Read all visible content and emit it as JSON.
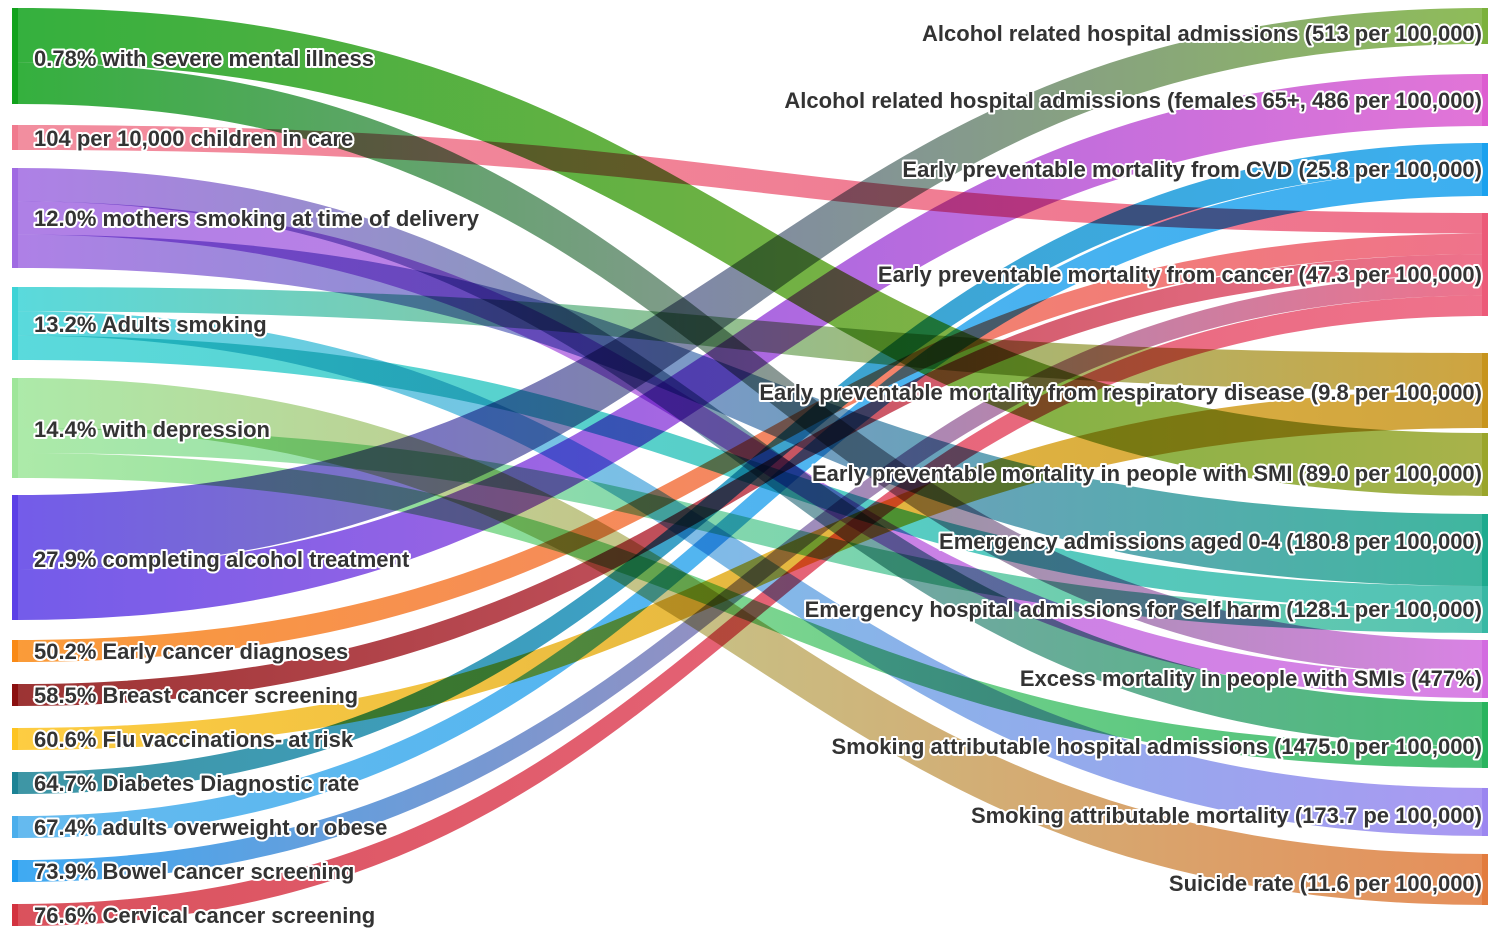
{
  "chart_data": {
    "type": "sankey",
    "sources": [
      {
        "id": "s0",
        "label": "0.78% with severe mental illness",
        "color": "#11a21c"
      },
      {
        "id": "s1",
        "label": "104 per 10,000 children in care",
        "color": "#f07a8e"
      },
      {
        "id": "s2",
        "label": "12.0% mothers smoking at time of delivery",
        "color": "#a06ae2"
      },
      {
        "id": "s3",
        "label": "13.2% Adults smoking",
        "color": "#3dd3d6"
      },
      {
        "id": "s4",
        "label": "14.4% with depression",
        "color": "#9ee69a"
      },
      {
        "id": "s5",
        "label": "27.9% completing alcohol treatment",
        "color": "#5b3fe6"
      },
      {
        "id": "s6",
        "label": "50.2% Early cancer diagnoses",
        "color": "#f98a16"
      },
      {
        "id": "s7",
        "label": "58.5% Breast cancer screening",
        "color": "#8b1010"
      },
      {
        "id": "s8",
        "label": "60.6% Flu vaccinations- at risk",
        "color": "#fdc421"
      },
      {
        "id": "s9",
        "label": "64.7% Diabetes Diagnostic rate",
        "color": "#1c8395"
      },
      {
        "id": "s10",
        "label": "67.4% adults overweight or obese",
        "color": "#4aaeec"
      },
      {
        "id": "s11",
        "label": "73.9% Bowel cancer screening",
        "color": "#1e9bf0"
      },
      {
        "id": "s12",
        "label": "76.6% Cervical cancer screening",
        "color": "#d33340"
      }
    ],
    "targets": [
      {
        "id": "t0",
        "label": "Alcohol related hospital admissions (513 per 100,000)",
        "color": "#7bb13b"
      },
      {
        "id": "t1",
        "label": "Alcohol related hospital admissions (females 65+, 486 per 100,000)",
        "color": "#dd5dd0"
      },
      {
        "id": "t2",
        "label": "Early preventable mortality from CVD (25.8 per 100,000)",
        "color": "#1aa1ee"
      },
      {
        "id": "t3",
        "label": "Early preventable mortality from cancer (47.3 per 100,000)",
        "color": "#ec5a78"
      },
      {
        "id": "t4",
        "label": "Early preventable mortality from respiratory disease (9.8 per 100,000)",
        "color": "#c7941d"
      },
      {
        "id": "t5",
        "label": "Early preventable mortality in people with SMI (89.0 per 100,000)",
        "color": "#9aa52a"
      },
      {
        "id": "t6",
        "label": "Emergency admissions aged 0-4 (180.8 per 100,000)",
        "color": "#1daa8e"
      },
      {
        "id": "t7",
        "label": "Emergency hospital admissions for self harm (128.1 per 100,000)",
        "color": "#37b8a4"
      },
      {
        "id": "t8",
        "label": "Excess mortality in people with SMIs (477%)",
        "color": "#d36ce0"
      },
      {
        "id": "t9",
        "label": "Smoking attributable hospital admissions (1475.0 per 100,000)",
        "color": "#29b45e"
      },
      {
        "id": "t10",
        "label": "Smoking attributable mortality (173.7 pe 100,000)",
        "color": "#9b86f0"
      },
      {
        "id": "t11",
        "label": "Suicide rate (11.6 per 100,000)",
        "color": "#e27b3d"
      }
    ],
    "links": [
      {
        "source": "s0",
        "target": "t5",
        "value": 4
      },
      {
        "source": "s0",
        "target": "t8",
        "value": 3
      },
      {
        "source": "s1",
        "target": "t3",
        "value": 1
      },
      {
        "source": "s2",
        "target": "t9",
        "value": 2
      },
      {
        "source": "s2",
        "target": "t8",
        "value": 2
      },
      {
        "source": "s2",
        "target": "t6",
        "value": 2
      },
      {
        "source": "s3",
        "target": "t4",
        "value": 1
      },
      {
        "source": "s3",
        "target": "t10",
        "value": 1
      },
      {
        "source": "s3",
        "target": "t7",
        "value": 1
      },
      {
        "source": "s4",
        "target": "t11",
        "value": 2
      },
      {
        "source": "s4",
        "target": "t7",
        "value": 1
      },
      {
        "source": "s4",
        "target": "t9",
        "value": 1
      },
      {
        "source": "s5",
        "target": "t0",
        "value": 3
      },
      {
        "source": "s5",
        "target": "t1",
        "value": 2
      },
      {
        "source": "s6",
        "target": "t3",
        "value": 1
      },
      {
        "source": "s7",
        "target": "t3",
        "value": 1
      },
      {
        "source": "s8",
        "target": "t4",
        "value": 1
      },
      {
        "source": "s9",
        "target": "t2",
        "value": 1
      },
      {
        "source": "s10",
        "target": "t2",
        "value": 1
      },
      {
        "source": "s11",
        "target": "t3",
        "value": 1
      },
      {
        "source": "s12",
        "target": "t3",
        "value": 1
      }
    ]
  }
}
